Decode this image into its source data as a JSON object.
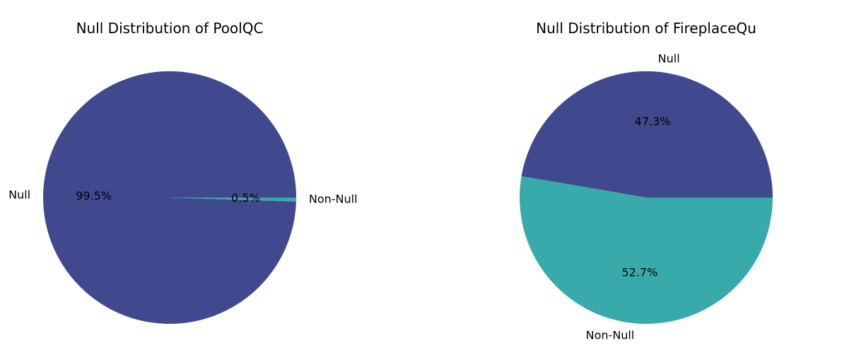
{
  "chart_data": [
    {
      "type": "pie",
      "title": "Null Distribution of PoolQC",
      "slices": [
        {
          "label": "Null",
          "value": 99.5,
          "pct_label": "99.5%",
          "color": "#40498e"
        },
        {
          "label": "Non-Null",
          "value": 0.5,
          "pct_label": "0.5%",
          "color": "#38aaac"
        }
      ]
    },
    {
      "type": "pie",
      "title": "Null Distribution of FireplaceQu",
      "slices": [
        {
          "label": "Null",
          "value": 47.3,
          "pct_label": "47.3%",
          "color": "#40498e"
        },
        {
          "label": "Non-Null",
          "value": 52.7,
          "pct_label": "52.7%",
          "color": "#38aaac"
        }
      ]
    }
  ]
}
